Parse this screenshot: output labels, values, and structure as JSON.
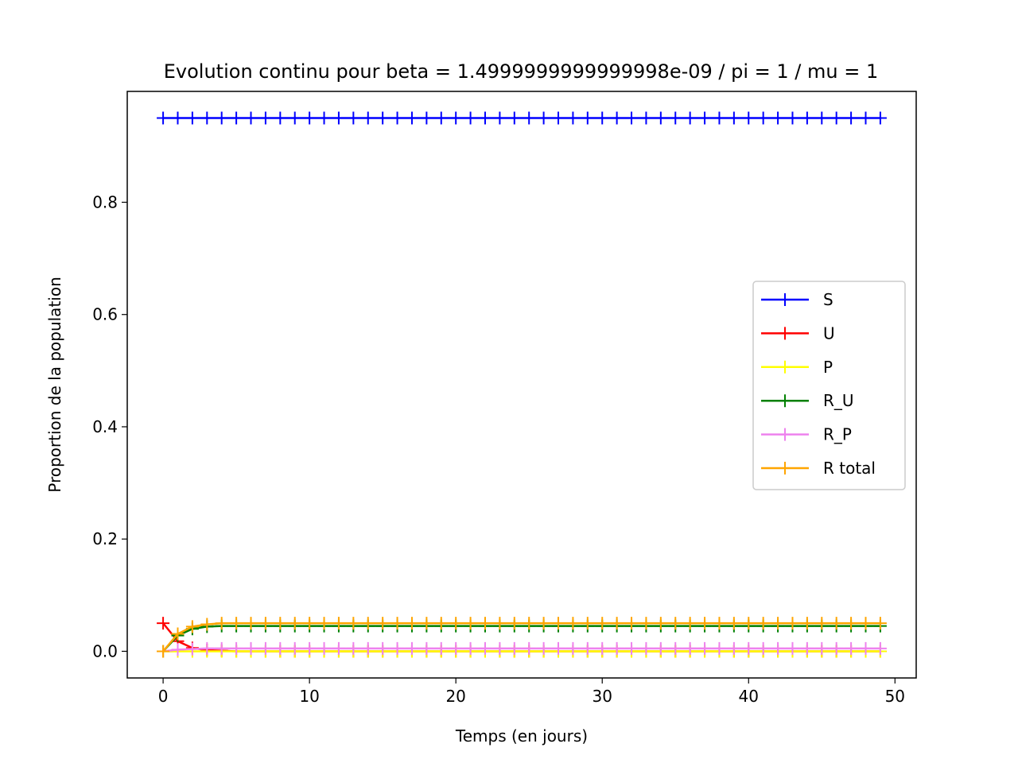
{
  "chart_data": {
    "type": "line",
    "title": "Evolution continu pour beta = 1.4999999999999998e-09 / pi = 1 / mu = 1",
    "xlabel": "Temps (en jours)",
    "ylabel": "Proportion de la population",
    "xlim": [
      -2.45,
      51.45
    ],
    "ylim": [
      -0.0475,
      0.9975
    ],
    "xticks": [
      0,
      10,
      20,
      30,
      40,
      50
    ],
    "yticks": [
      0.0,
      0.2,
      0.4,
      0.6,
      0.8
    ],
    "xtick_labels": [
      "0",
      "10",
      "20",
      "30",
      "40",
      "50"
    ],
    "ytick_labels": [
      "0.0",
      "0.2",
      "0.4",
      "0.6",
      "0.8"
    ],
    "grid": false,
    "legend_position": "center-right",
    "marker": "+",
    "x": [
      0,
      1,
      2,
      3,
      4,
      5,
      6,
      7,
      8,
      9,
      10,
      11,
      12,
      13,
      14,
      15,
      16,
      17,
      18,
      19,
      20,
      21,
      22,
      23,
      24,
      25,
      26,
      27,
      28,
      29,
      30,
      31,
      32,
      33,
      34,
      35,
      36,
      37,
      38,
      39,
      40,
      41,
      42,
      43,
      44,
      45,
      46,
      47,
      48,
      49
    ],
    "series": [
      {
        "name": "S",
        "color": "#0000ff",
        "start": [
          0.95
        ],
        "plateau": 0.95
      },
      {
        "name": "U",
        "color": "#ff0000",
        "start": [
          0.05,
          0.018,
          0.006,
          0.002,
          0.001
        ],
        "plateau": 0.0
      },
      {
        "name": "P",
        "color": "#ffff00",
        "start": [
          0.0,
          0.0,
          0.0,
          0.0
        ],
        "plateau": 0.0
      },
      {
        "name": "R_U",
        "color": "#008000",
        "start": [
          0.0,
          0.028,
          0.04,
          0.044
        ],
        "plateau": 0.045
      },
      {
        "name": "R_P",
        "color": "#ee82ee",
        "start": [
          0.0,
          0.003,
          0.004
        ],
        "plateau": 0.005
      },
      {
        "name": "R total",
        "color": "#ffa500",
        "start": [
          0.0,
          0.031,
          0.044,
          0.048
        ],
        "plateau": 0.05
      }
    ]
  }
}
